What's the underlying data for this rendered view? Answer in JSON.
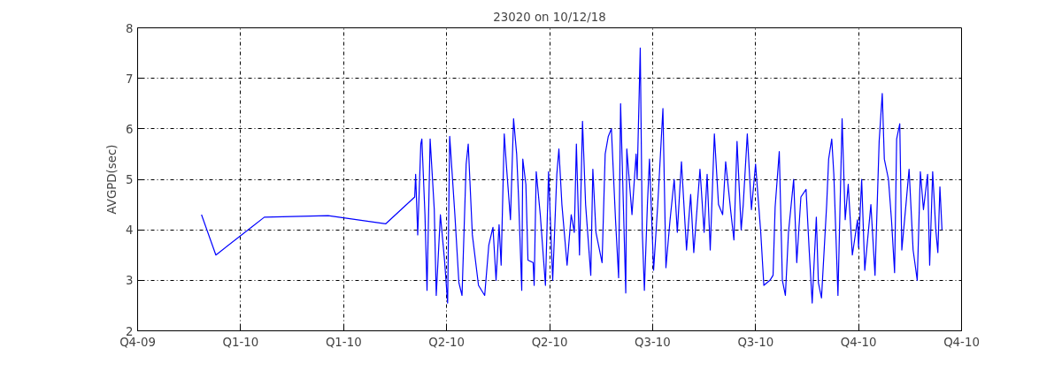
{
  "chart_data": {
    "type": "line",
    "title": "23020 on 10/12/18",
    "ylabel": "AVGPD(sec)",
    "xlim": [
      "2009-12-01",
      "2010-12-01"
    ],
    "xticks": [
      {
        "value": "2009-12-01",
        "label": "Q4-09"
      },
      {
        "value": "2010-01-15T15:00",
        "label": "Q1-10"
      },
      {
        "value": "2010-03-02T06:00",
        "label": "Q1-10"
      },
      {
        "value": "2010-04-16T21:00",
        "label": "Q2-10"
      },
      {
        "value": "2010-06-01T12:00",
        "label": "Q2-10"
      },
      {
        "value": "2010-07-17T03:00",
        "label": "Q3-10"
      },
      {
        "value": "2010-08-31T18:00",
        "label": "Q3-10"
      },
      {
        "value": "2010-10-16T09:00",
        "label": "Q4-10"
      },
      {
        "value": "2010-12-01",
        "label": "Q4-10"
      }
    ],
    "ylim": [
      2,
      8
    ],
    "yticks": [
      2,
      3,
      4,
      5,
      6,
      7,
      8
    ],
    "grid": true,
    "marker": "none",
    "line_style": "solid",
    "series": [
      {
        "color": "#0000ff",
        "x": [
          "2009-12-29T07:00",
          "2010-01-04T16:00",
          "2010-01-26T03:00",
          "2010-02-23T10:00",
          "2010-03-20T23:00",
          "2010-04-02T18:00",
          "2010-04-03T04:00",
          "2010-04-04T02:00",
          "2010-04-05T11:00",
          "2010-04-05T22:00",
          "2010-04-07T07:00",
          "2010-04-08T05:00",
          "2010-04-09T14:00",
          "2010-04-11T10:00",
          "2010-04-12T07:00",
          "2010-04-14T03:00",
          "2010-04-15T23:00",
          "2010-04-17T08:00",
          "2010-04-18T06:00",
          "2010-04-20T13:00",
          "2010-04-22T08:00",
          "2010-04-23T17:00",
          "2010-04-25T13:00",
          "2010-04-26T11:00",
          "2010-04-28T07:00",
          "2010-05-01T00:00",
          "2010-05-03T18:00",
          "2010-05-05T14:00",
          "2010-05-07T10:00",
          "2010-05-08T19:00",
          "2010-05-10T03:00",
          "2010-05-11T01:00",
          "2010-05-12T10:00",
          "2010-05-13T08:00",
          "2010-05-15T04:00",
          "2010-05-16T13:00",
          "2010-05-17T22:00",
          "2010-05-18T19:00",
          "2010-05-20T04:00",
          "2010-05-20T15:00",
          "2010-05-22T00:00",
          "2010-05-22T22:00",
          "2010-05-25T05:00",
          "2010-05-25T16:00",
          "2010-05-26T14:00",
          "2010-05-28T09:00",
          "2010-05-30T16:00",
          "2010-06-01T01:00",
          "2010-06-02T21:00",
          "2010-06-04T17:00",
          "2010-06-05T15:00",
          "2010-06-06T23:00",
          "2010-06-09T06:00",
          "2010-06-11T02:00",
          "2010-06-12T11:00",
          "2010-06-13T09:00",
          "2010-06-14T18:00",
          "2010-06-16T02:00",
          "2010-06-17T11:00",
          "2010-06-19T18:00",
          "2010-06-20T16:00",
          "2010-06-22T01:00",
          "2010-06-24T18:00",
          "2010-06-26T03:00",
          "2010-06-27T12:00",
          "2010-06-28T21:00",
          "2010-06-30T17:00",
          "2010-07-02T02:00",
          "2010-07-02T23:00",
          "2010-07-05T06:00",
          "2010-07-05T17:00",
          "2010-07-08T00:00",
          "2010-07-09T20:00",
          "2010-07-10T07:00",
          "2010-07-11T16:00",
          "2010-07-12T13:00",
          "2010-07-13T12:00",
          "2010-07-14T20:00",
          "2010-07-15T18:00",
          "2010-07-17T14:00",
          "2010-07-19T10:00",
          "2010-07-21T17:00",
          "2010-07-23T01:00",
          "2010-07-24T21:00",
          "2010-07-26T17:00",
          "2010-07-28T02:00",
          "2010-07-29T22:00",
          "2010-08-01T04:00",
          "2010-08-03T00:00",
          "2010-08-04T09:00",
          "2010-08-07T03:00",
          "2010-08-08T23:00",
          "2010-08-10T07:00",
          "2010-08-11T16:00",
          "2010-08-13T12:00",
          "2010-08-15T08:00",
          "2010-08-17T04:00",
          "2010-08-18T12:00",
          "2010-08-20T19:00",
          "2010-08-22T04:00",
          "2010-08-23T13:00",
          "2010-08-25T09:00",
          "2010-08-26T07:00",
          "2010-08-28T02:00",
          "2010-08-29T22:00",
          "2010-08-31T18:00",
          "2010-09-03T01:00",
          "2010-09-04T10:00",
          "2010-09-07T03:00",
          "2010-09-08T12:00",
          "2010-09-09T10:00",
          "2010-09-11T06:00",
          "2010-09-12T15:00",
          "2010-09-13T23:00",
          "2010-09-15T08:00",
          "2010-09-17T15:00",
          "2010-09-19T00:00",
          "2010-09-20T20:00",
          "2010-09-23T03:00",
          "2010-09-24T12:00",
          "2010-09-25T20:00",
          "2010-09-27T16:00",
          "2010-09-28T14:00",
          "2010-09-29T23:00",
          "2010-10-02T06:00",
          "2010-10-03T03:00",
          "2010-10-04T12:00",
          "2010-10-05T10:00",
          "2010-10-07T06:00",
          "2010-10-09T02:00",
          "2010-10-10T11:00",
          "2010-10-11T19:00",
          "2010-10-13T15:00",
          "2010-10-15T22:00",
          "2010-10-16T09:00",
          "2010-10-17T18:00",
          "2010-10-19T03:00",
          "2010-10-21T20:00",
          "2010-10-23T16:00",
          "2010-10-25T12:00",
          "2010-10-26T21:00",
          "2010-10-27T19:00",
          "2010-10-29T15:00",
          "2010-10-30T23:00",
          "2010-11-01T08:00",
          "2010-11-02T06:00",
          "2010-11-03T15:00",
          "2010-11-04T13:00",
          "2010-11-06T09:00",
          "2010-11-07T18:00",
          "2010-11-09T13:00",
          "2010-11-11T09:00",
          "2010-11-12T18:00",
          "2010-11-14T03:00",
          "2010-11-15T23:00",
          "2010-11-16T21:00",
          "2010-11-18T05:00",
          "2010-11-19T14:00",
          "2010-11-20T12:00",
          "2010-11-21T10:00",
          "2010-11-22T08:00"
        ],
        "values": [
          4.3,
          3.5,
          4.25,
          4.28,
          4.12,
          4.65,
          5.1,
          3.9,
          5.7,
          5.8,
          4.3,
          2.8,
          5.8,
          4.4,
          2.7,
          4.3,
          3.4,
          2.55,
          5.85,
          4.3,
          2.95,
          2.7,
          5.3,
          5.7,
          3.9,
          2.9,
          2.7,
          3.7,
          4.05,
          3.0,
          4.1,
          3.3,
          5.9,
          5.3,
          4.2,
          6.2,
          5.5,
          4.6,
          2.8,
          5.4,
          4.9,
          3.4,
          3.35,
          2.9,
          5.15,
          4.3,
          2.9,
          5.15,
          3.0,
          5.1,
          5.6,
          4.5,
          3.3,
          4.3,
          3.95,
          5.7,
          3.5,
          6.15,
          4.5,
          3.1,
          5.2,
          3.95,
          3.35,
          5.5,
          5.85,
          6.0,
          4.2,
          3.05,
          6.5,
          2.75,
          5.6,
          4.3,
          5.5,
          5.0,
          7.6,
          4.0,
          2.8,
          4.5,
          5.4,
          3.2,
          4.5,
          6.4,
          3.25,
          4.2,
          5.0,
          3.95,
          5.35,
          3.6,
          4.7,
          3.55,
          5.2,
          3.95,
          5.1,
          3.6,
          5.9,
          4.5,
          4.3,
          5.35,
          4.35,
          3.8,
          5.75,
          4.0,
          4.5,
          5.9,
          4.4,
          5.3,
          3.95,
          2.9,
          3.0,
          3.1,
          4.45,
          5.55,
          3.0,
          2.7,
          3.95,
          5.0,
          3.35,
          4.65,
          4.8,
          3.6,
          2.55,
          4.25,
          2.95,
          2.65,
          4.5,
          5.4,
          5.8,
          5.1,
          2.7,
          6.2,
          4.2,
          4.9,
          3.5,
          4.2,
          3.65,
          5.0,
          3.2,
          4.5,
          3.1,
          5.75,
          6.7,
          5.4,
          5.0,
          4.2,
          3.15,
          5.8,
          6.1,
          3.6,
          4.5,
          5.2,
          3.6,
          3.0,
          5.15,
          4.4,
          5.1,
          3.3,
          5.15,
          4.0,
          3.55,
          4.85,
          4.0
        ]
      }
    ]
  }
}
